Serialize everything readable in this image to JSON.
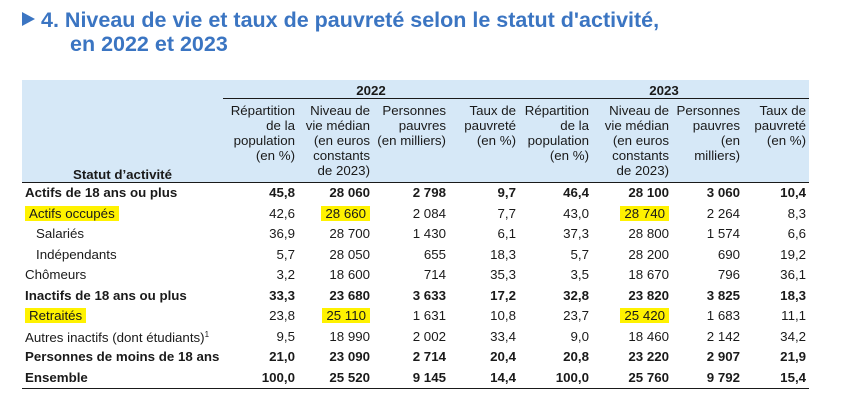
{
  "title": {
    "number": "4.",
    "line1": "Niveau de vie et taux de pauvreté selon le statut d'activité,",
    "line2": "en 2022 et 2023"
  },
  "header": {
    "stub": "Statut d’activité",
    "years": [
      "2022",
      "2023"
    ],
    "columns": [
      [
        "Répartition",
        "de la",
        "population",
        "(en %)"
      ],
      [
        "Niveau de",
        "vie médian",
        "(en euros",
        "constants",
        "de 2023)"
      ],
      [
        "Personnes",
        "pauvres",
        "(en milliers)"
      ],
      [
        "Taux de",
        "pauvreté",
        "(en %)"
      ]
    ]
  },
  "rows": [
    {
      "label": "Actifs de 18 ans ou plus",
      "sup": "",
      "bold": true,
      "indent": false,
      "highlight": false,
      "v2022": [
        "45,8",
        "28 060",
        "2 798",
        "9,7"
      ],
      "v2023": [
        "46,4",
        "28 100",
        "3 060",
        "10,4"
      ]
    },
    {
      "label": "Actifs occupés",
      "sup": "",
      "bold": false,
      "indent": false,
      "highlight": true,
      "v2022": [
        "42,6",
        "28 660",
        "2 084",
        "7,7"
      ],
      "v2023": [
        "43,0",
        "28 740",
        "2 264",
        "8,3"
      ]
    },
    {
      "label": "Salariés",
      "sup": "",
      "bold": false,
      "indent": true,
      "highlight": false,
      "v2022": [
        "36,9",
        "28 700",
        "1 430",
        "6,1"
      ],
      "v2023": [
        "37,3",
        "28 800",
        "1 574",
        "6,6"
      ]
    },
    {
      "label": "Indépendants",
      "sup": "",
      "bold": false,
      "indent": true,
      "highlight": false,
      "v2022": [
        "5,7",
        "28 050",
        "655",
        "18,3"
      ],
      "v2023": [
        "5,7",
        "28 200",
        "690",
        "19,2"
      ]
    },
    {
      "label": "Chômeurs",
      "sup": "",
      "bold": false,
      "indent": false,
      "highlight": false,
      "v2022": [
        "3,2",
        "18 600",
        "714",
        "35,3"
      ],
      "v2023": [
        "3,5",
        "18 670",
        "796",
        "36,1"
      ]
    },
    {
      "label": "Inactifs de 18 ans ou plus",
      "sup": "",
      "bold": true,
      "indent": false,
      "highlight": false,
      "v2022": [
        "33,3",
        "23 680",
        "3 633",
        "17,2"
      ],
      "v2023": [
        "32,8",
        "23 820",
        "3 825",
        "18,3"
      ]
    },
    {
      "label": "Retraités",
      "sup": "",
      "bold": false,
      "indent": false,
      "highlight": true,
      "v2022": [
        "23,8",
        "25 110",
        "1 631",
        "10,8"
      ],
      "v2023": [
        "23,7",
        "25 420",
        "1 683",
        "11,1"
      ]
    },
    {
      "label": "Autres inactifs (dont étudiants)",
      "sup": "1",
      "bold": false,
      "indent": false,
      "highlight": false,
      "v2022": [
        "9,5",
        "18 990",
        "2 002",
        "33,4"
      ],
      "v2023": [
        "9,0",
        "18 460",
        "2 142",
        "34,2"
      ]
    },
    {
      "label": "Personnes de moins de 18 ans",
      "sup": "",
      "bold": true,
      "indent": false,
      "highlight": false,
      "v2022": [
        "21,0",
        "23 090",
        "2 714",
        "20,4"
      ],
      "v2023": [
        "20,8",
        "23 220",
        "2 907",
        "21,9"
      ]
    },
    {
      "label": "Ensemble",
      "sup": "",
      "bold": true,
      "indent": false,
      "highlight": false,
      "v2022": [
        "100,0",
        "25 520",
        "9 145",
        "14,4"
      ],
      "v2023": [
        "100,0",
        "25 760",
        "9 792",
        "15,4"
      ]
    }
  ],
  "colors": {
    "title": "#3b75c2",
    "header_bg": "#d6e8f7",
    "highlight": "#fff200"
  }
}
